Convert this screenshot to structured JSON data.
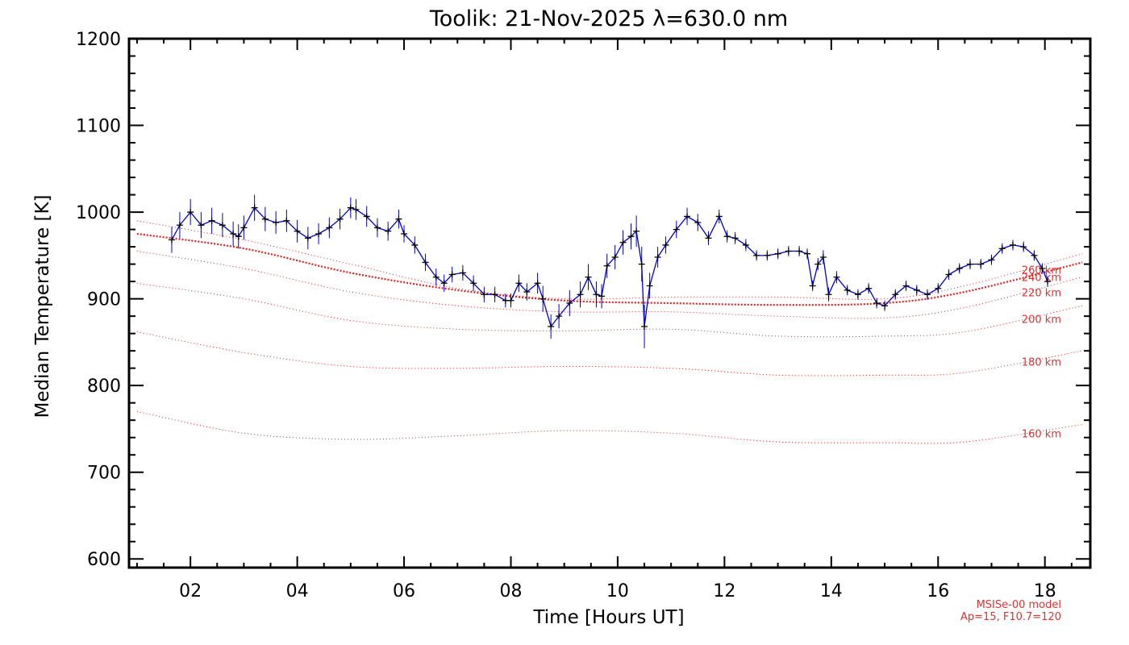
{
  "chart_data": {
    "type": "line",
    "title": "Toolik: 21-Nov-2025 λ=630.0 nm",
    "xlabel": "Time [Hours UT]",
    "ylabel": "Median Temperature [K]",
    "xlim": [
      0.85,
      18.85
    ],
    "ylim": [
      590,
      1200
    ],
    "xticks": [
      2,
      4,
      6,
      8,
      10,
      12,
      14,
      16,
      18
    ],
    "xtick_labels": [
      "02",
      "04",
      "06",
      "08",
      "10",
      "12",
      "14",
      "16",
      "18"
    ],
    "yticks": [
      600,
      700,
      800,
      900,
      1000,
      1100,
      1200
    ],
    "ytick_labels": [
      "600",
      "700",
      "800",
      "900",
      "1000",
      "1100",
      "1200"
    ],
    "colors": {
      "data": "#0000cc",
      "marker": "#000000",
      "model": "#e02020",
      "axis": "#000000"
    },
    "series": [
      {
        "name": "Median Temperature",
        "x": [
          1.65,
          1.8,
          2.0,
          2.2,
          2.4,
          2.6,
          2.8,
          2.9,
          3.0,
          3.2,
          3.4,
          3.6,
          3.8,
          4.0,
          4.2,
          4.4,
          4.6,
          4.8,
          5.0,
          5.1,
          5.3,
          5.5,
          5.7,
          5.9,
          6.0,
          6.2,
          6.4,
          6.6,
          6.75,
          6.9,
          7.1,
          7.3,
          7.5,
          7.7,
          7.9,
          8.0,
          8.15,
          8.3,
          8.5,
          8.6,
          8.75,
          8.9,
          9.1,
          9.3,
          9.45,
          9.6,
          9.7,
          9.8,
          9.95,
          10.1,
          10.25,
          10.35,
          10.45,
          10.5,
          10.6,
          10.75,
          10.9,
          11.1,
          11.3,
          11.5,
          11.7,
          11.9,
          12.05,
          12.2,
          12.4,
          12.6,
          12.8,
          13.0,
          13.2,
          13.4,
          13.55,
          13.65,
          13.75,
          13.85,
          13.95,
          14.1,
          14.3,
          14.5,
          14.7,
          14.85,
          15.0,
          15.2,
          15.4,
          15.6,
          15.8,
          16.0,
          16.2,
          16.4,
          16.6,
          16.8,
          17.0,
          17.2,
          17.4,
          17.6,
          17.8,
          17.95,
          18.05
        ],
        "values": [
          968,
          985,
          1000,
          985,
          990,
          985,
          975,
          972,
          982,
          1005,
          992,
          988,
          990,
          978,
          970,
          975,
          982,
          992,
          1005,
          1003,
          995,
          982,
          978,
          992,
          975,
          962,
          942,
          925,
          918,
          928,
          930,
          918,
          905,
          905,
          898,
          898,
          918,
          908,
          918,
          900,
          868,
          880,
          895,
          905,
          925,
          905,
          903,
          938,
          948,
          965,
          972,
          978,
          940,
          868,
          915,
          948,
          962,
          980,
          995,
          988,
          970,
          995,
          972,
          970,
          962,
          950,
          950,
          952,
          955,
          955,
          952,
          915,
          940,
          948,
          905,
          925,
          910,
          905,
          912,
          895,
          892,
          905,
          915,
          910,
          905,
          912,
          928,
          935,
          940,
          940,
          945,
          958,
          962,
          960,
          950,
          935,
          920
        ],
        "err": [
          15,
          15,
          15,
          15,
          15,
          14,
          14,
          14,
          14,
          15,
          14,
          13,
          13,
          13,
          13,
          12,
          12,
          12,
          12,
          12,
          12,
          11,
          11,
          11,
          10,
          10,
          10,
          10,
          10,
          9,
          9,
          9,
          9,
          9,
          8,
          8,
          10,
          10,
          12,
          15,
          14,
          14,
          15,
          15,
          15,
          15,
          14,
          14,
          14,
          14,
          15,
          18,
          20,
          25,
          15,
          12,
          10,
          10,
          10,
          10,
          8,
          8,
          7,
          7,
          7,
          6,
          6,
          6,
          6,
          6,
          6,
          6,
          7,
          8,
          8,
          7,
          6,
          6,
          6,
          6,
          6,
          6,
          6,
          6,
          6,
          6,
          6,
          6,
          6,
          6,
          6,
          6,
          6,
          6,
          6,
          6,
          6
        ]
      }
    ],
    "model_curves": [
      {
        "label": "260 km",
        "x": [
          1,
          3,
          5,
          7,
          9,
          11,
          13,
          15,
          16.5,
          18.7
        ],
        "values": [
          990,
          968,
          940,
          912,
          900,
          902,
          902,
          900,
          915,
          952
        ]
      },
      {
        "label": "240 km",
        "x": [
          1,
          3,
          5,
          7,
          9,
          11,
          13,
          15,
          16.5,
          18.7
        ],
        "values": [
          975,
          958,
          930,
          910,
          898,
          895,
          893,
          895,
          908,
          942
        ]
      },
      {
        "label": "220 km",
        "x": [
          1,
          3,
          5,
          7,
          9,
          11,
          13,
          15,
          16.5,
          18.7
        ],
        "values": [
          955,
          935,
          908,
          892,
          885,
          885,
          880,
          878,
          890,
          925
        ]
      },
      {
        "label": "200 km",
        "x": [
          1,
          3,
          5,
          7,
          9,
          11,
          13,
          15,
          16.5,
          18.7
        ],
        "values": [
          918,
          900,
          875,
          865,
          863,
          865,
          857,
          857,
          862,
          892
        ]
      },
      {
        "label": "180 km",
        "x": [
          1,
          3,
          5,
          7,
          9,
          11,
          13,
          15,
          16.5,
          18.7
        ],
        "values": [
          862,
          838,
          822,
          820,
          822,
          820,
          812,
          812,
          815,
          840
        ]
      },
      {
        "label": "160 km",
        "x": [
          1,
          3,
          5,
          7,
          9,
          11,
          13,
          15,
          16.5,
          18.7
        ],
        "values": [
          770,
          745,
          738,
          742,
          748,
          745,
          735,
          734,
          735,
          755
        ]
      }
    ],
    "model_note_line1": "MSISe-00 model",
    "model_note_line2": "Ap=15, F10.7=120"
  }
}
